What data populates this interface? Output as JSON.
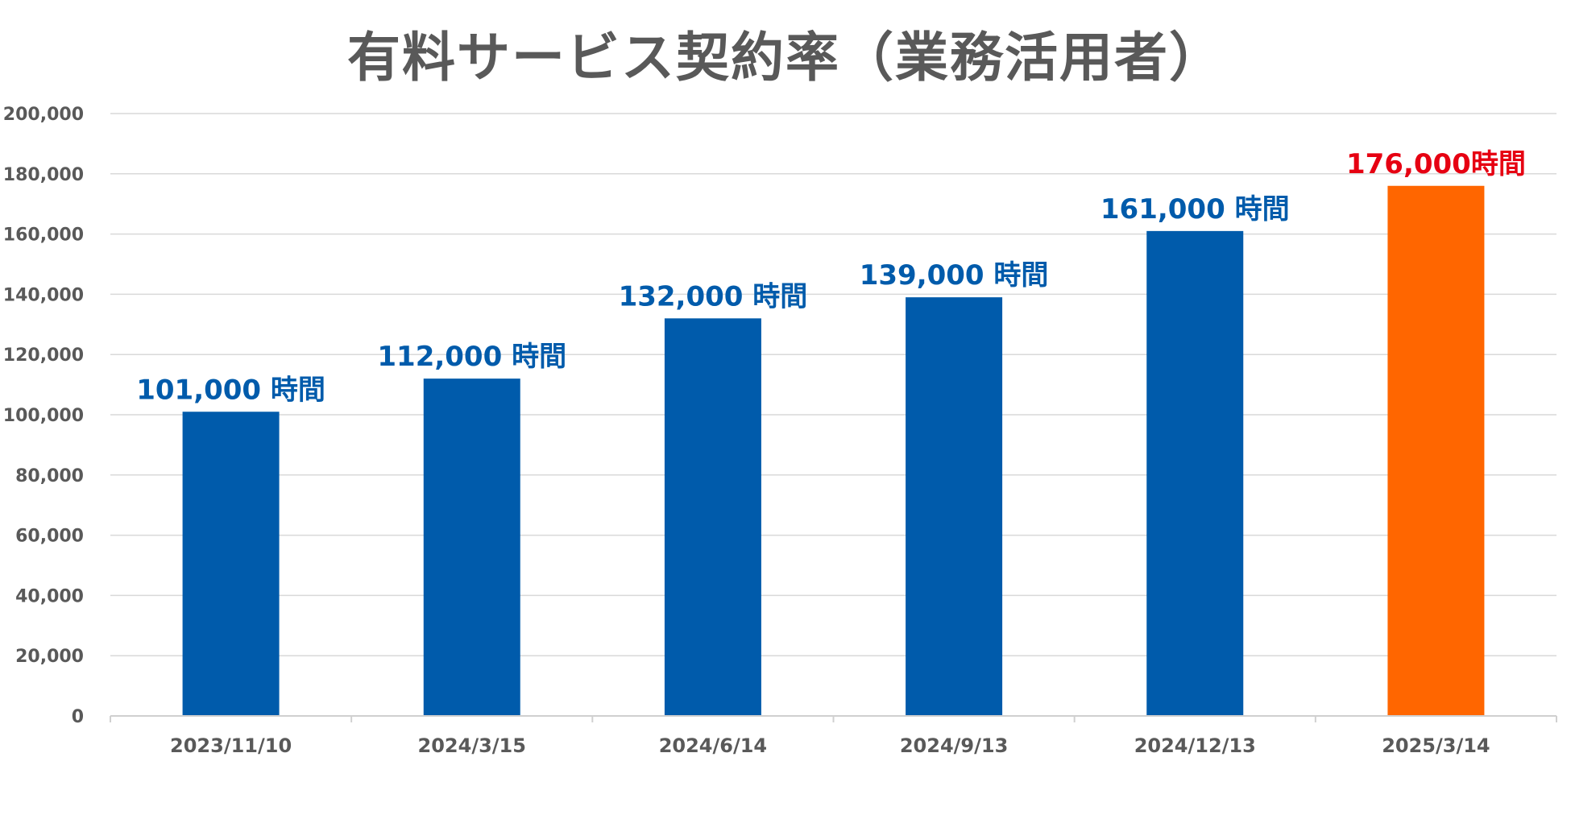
{
  "chart_data": {
    "type": "bar",
    "title": "有料サービス契約率（業務活用者）",
    "xlabel": "",
    "ylabel": "",
    "ylim": [
      0,
      200000
    ],
    "ytick_step": 20000,
    "y_ticks": [
      "0",
      "20,000",
      "40,000",
      "60,000",
      "80,000",
      "100,000",
      "120,000",
      "140,000",
      "160,000",
      "180,000",
      "200,000"
    ],
    "grid": true,
    "legend": "none",
    "categories": [
      "2023/11/10",
      "2024/3/15",
      "2024/6/14",
      "2024/9/13",
      "2024/12/13",
      "2025/3/14"
    ],
    "values": [
      101000,
      112000,
      132000,
      139000,
      161000,
      176000
    ],
    "data_labels": [
      "101,000 時間",
      "112,000 時間",
      "132,000 時間",
      "139,000 時間",
      "161,000 時間",
      "176,000時間"
    ],
    "bar_colors": [
      "#005bab",
      "#005bab",
      "#005bab",
      "#005bab",
      "#005bab",
      "#ff6600"
    ],
    "label_colors": [
      "#005bab",
      "#005bab",
      "#005bab",
      "#005bab",
      "#005bab",
      "#e60012"
    ],
    "grid_color": "#d9d9d9",
    "axis_color": "#d0d0d0"
  }
}
